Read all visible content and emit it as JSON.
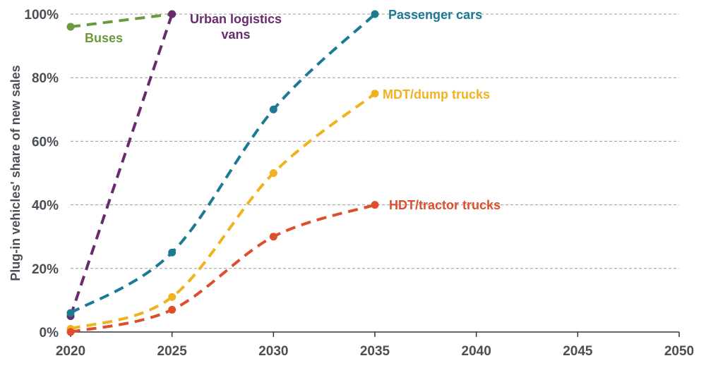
{
  "chart_data": {
    "type": "line",
    "title": "",
    "xlabel": "",
    "ylabel": "Plug-in vehicles' share of new sales",
    "xlim": [
      2020,
      2050
    ],
    "ylim": [
      0,
      100
    ],
    "x_ticks": [
      "2020",
      "2025",
      "2030",
      "2035",
      "2040",
      "2045",
      "2050"
    ],
    "y_ticks": [
      "0%",
      "20%",
      "40%",
      "60%",
      "80%",
      "100%"
    ],
    "grid": true,
    "legend": "inline-labels",
    "series": [
      {
        "name": "Buses",
        "color": "#6a9a3c",
        "x": [
          2020,
          2025
        ],
        "y": [
          96,
          100
        ]
      },
      {
        "name": "Urban logistics vans",
        "color": "#6a2a6e",
        "x": [
          2020,
          2025
        ],
        "y": [
          5,
          100
        ]
      },
      {
        "name": "Passenger cars",
        "color": "#1c7a93",
        "x": [
          2020,
          2025,
          2030,
          2035
        ],
        "y": [
          6,
          25,
          70,
          100
        ]
      },
      {
        "name": "MDT/dump trucks",
        "color": "#f0b21e",
        "x": [
          2020,
          2025,
          2030,
          2035
        ],
        "y": [
          1,
          11,
          50,
          75
        ]
      },
      {
        "name": "HDT/tractor trucks",
        "color": "#de4e2c",
        "x": [
          2020,
          2025,
          2030,
          2035
        ],
        "y": [
          0,
          7,
          30,
          40
        ]
      }
    ]
  }
}
